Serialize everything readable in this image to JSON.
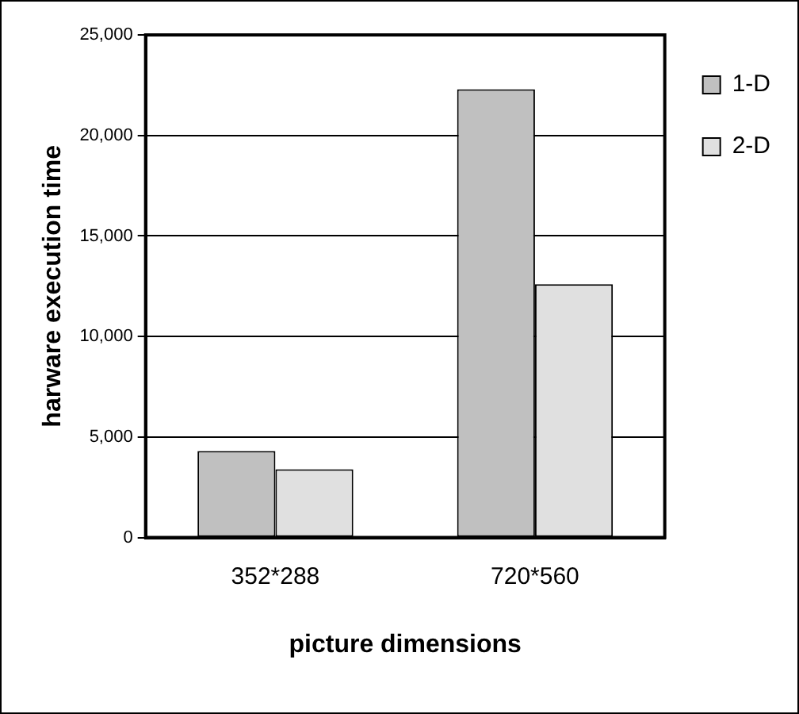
{
  "chart_data": {
    "type": "bar",
    "xlabel": "picture dimensions",
    "ylabel": "harware execution time",
    "categories": [
      "352*288",
      "720*560"
    ],
    "series": [
      {
        "name": "1-D",
        "color": "#c0c0c0",
        "values": [
          4300,
          22300
        ]
      },
      {
        "name": "2-D",
        "color": "#e0e0e0",
        "values": [
          3400,
          12600
        ]
      }
    ],
    "ylim": [
      0,
      25000
    ],
    "yticks": [
      {
        "value": 0,
        "label": "0"
      },
      {
        "value": 5000,
        "label": "5,000"
      },
      {
        "value": 10000,
        "label": "10,000"
      },
      {
        "value": 15000,
        "label": "15,000"
      },
      {
        "value": 20000,
        "label": "20,000"
      },
      {
        "value": 25000,
        "label": "25,000"
      }
    ],
    "grid": "y",
    "legend": "top right"
  }
}
